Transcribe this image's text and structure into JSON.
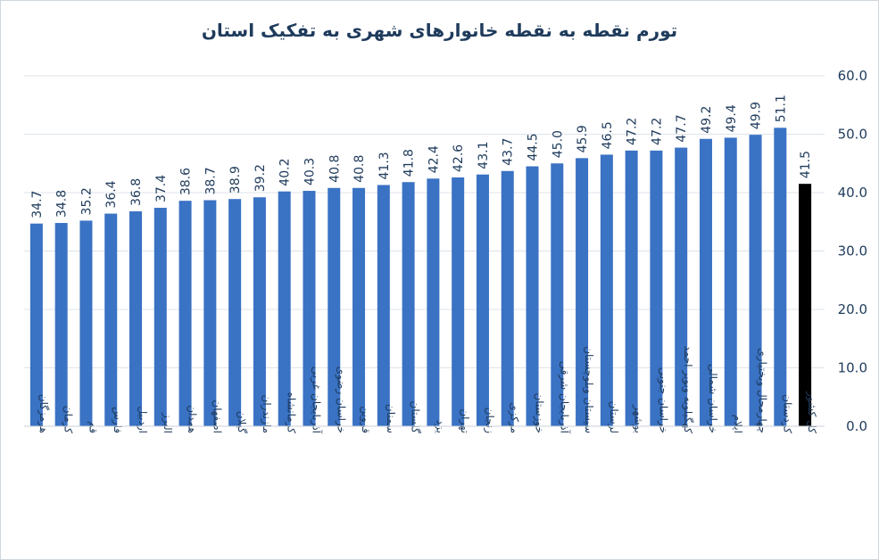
{
  "chart_data": {
    "type": "bar",
    "title": "تورم نقطه به نقطه خانوارهای شهری به تفکیک استان",
    "xlabel": "",
    "ylabel": "",
    "ylim": [
      0,
      60
    ],
    "yticks": [
      "0.0",
      "10.0",
      "20.0",
      "30.0",
      "40.0",
      "50.0",
      "60.0"
    ],
    "grid": true,
    "bar_color": "#3a72c4",
    "highlight_color": "#000000",
    "highlight_category": "کل کشور",
    "categories": [
      "هرمزگان",
      "کرمان",
      "قم",
      "فارس",
      "اردبیل",
      "البرز",
      "همدان",
      "اصفهان",
      "گیلان",
      "مازندران",
      "کرمانشاه",
      "آذربایجان غربی",
      "خراسان رضوی",
      "قزوین",
      "سمنان",
      "گلستان",
      "یزد",
      "تهران",
      "زنجان",
      "مرکزی",
      "خوزستان",
      "آذربایجان شرقی",
      "سیستان وبلوچستان",
      "لرستان",
      "بوشهر",
      "خراسان جنوبی",
      "کهگیلویه وبویر احمد",
      "خراسان شمالی",
      "ایلام",
      "چهارمحال وبختیاری",
      "کردستان",
      "کل کشور"
    ],
    "values": [
      34.7,
      34.8,
      35.2,
      36.4,
      36.8,
      37.4,
      38.6,
      38.7,
      38.9,
      39.2,
      40.2,
      40.3,
      40.8,
      40.8,
      41.3,
      41.8,
      42.4,
      42.6,
      43.1,
      43.7,
      44.5,
      45.0,
      45.9,
      46.5,
      47.2,
      47.2,
      47.7,
      49.2,
      49.4,
      49.9,
      51.1,
      41.5
    ]
  }
}
